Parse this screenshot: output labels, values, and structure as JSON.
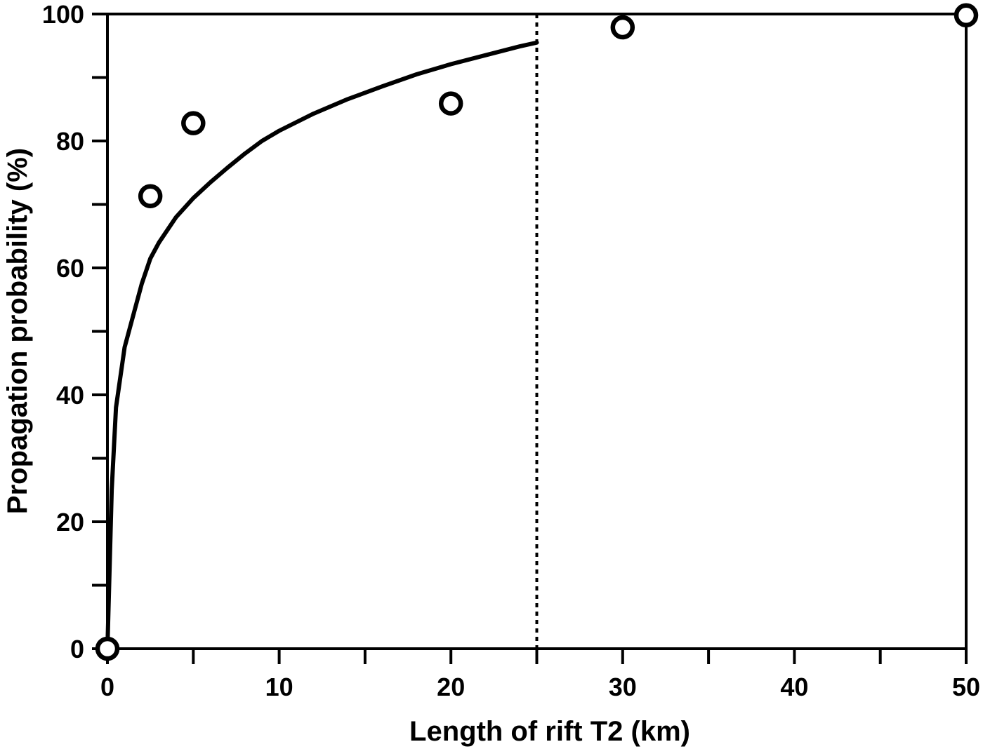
{
  "chart_data": {
    "type": "scatter",
    "title": "",
    "xlabel": "Length of rift T2 (km)",
    "ylabel": "Propagation probability (%)",
    "xlim": [
      0,
      50
    ],
    "ylim": [
      0,
      100
    ],
    "x_ticks_major": [
      0,
      10,
      20,
      30,
      40,
      50
    ],
    "x_ticks_minor": [
      5,
      15,
      25,
      35,
      45
    ],
    "x_tick_labels": [
      "0",
      "10",
      "20",
      "30",
      "40",
      "50"
    ],
    "y_ticks_major": [
      0,
      20,
      40,
      60,
      80,
      100
    ],
    "y_ticks_minor": [
      10,
      30,
      50,
      70,
      90
    ],
    "y_tick_labels": [
      "0",
      "20",
      "40",
      "60",
      "80",
      "100"
    ],
    "grid": false,
    "series": [
      {
        "type": "scatter",
        "marker": "open-circle",
        "points": [
          {
            "x": 0,
            "y": 0
          },
          {
            "x": 2.5,
            "y": 71.3
          },
          {
            "x": 5,
            "y": 82.8
          },
          {
            "x": 20,
            "y": 85.9
          },
          {
            "x": 30,
            "y": 97.9
          },
          {
            "x": 50,
            "y": 99.8
          }
        ]
      },
      {
        "type": "line",
        "style": "solid",
        "points": [
          {
            "x": 0,
            "y": 0
          },
          {
            "x": 0.25,
            "y": 25
          },
          {
            "x": 0.5,
            "y": 38
          },
          {
            "x": 1,
            "y": 47.5
          },
          {
            "x": 1.5,
            "y": 52.5
          },
          {
            "x": 2,
            "y": 57.5
          },
          {
            "x": 2.5,
            "y": 61.5
          },
          {
            "x": 3,
            "y": 64
          },
          {
            "x": 4,
            "y": 68
          },
          {
            "x": 5,
            "y": 71
          },
          {
            "x": 6,
            "y": 73.5
          },
          {
            "x": 7,
            "y": 75.8
          },
          {
            "x": 8,
            "y": 78
          },
          {
            "x": 9,
            "y": 80
          },
          {
            "x": 10,
            "y": 81.6
          },
          {
            "x": 12,
            "y": 84.3
          },
          {
            "x": 14,
            "y": 86.6
          },
          {
            "x": 16,
            "y": 88.6
          },
          {
            "x": 18,
            "y": 90.5
          },
          {
            "x": 20,
            "y": 92.1
          },
          {
            "x": 22,
            "y": 93.5
          },
          {
            "x": 24,
            "y": 94.9
          },
          {
            "x": 25,
            "y": 95.5
          }
        ]
      }
    ],
    "reference_lines": [
      {
        "orientation": "vertical",
        "x": 25,
        "style": "dotted",
        "y_range": [
          0,
          100
        ]
      }
    ]
  }
}
